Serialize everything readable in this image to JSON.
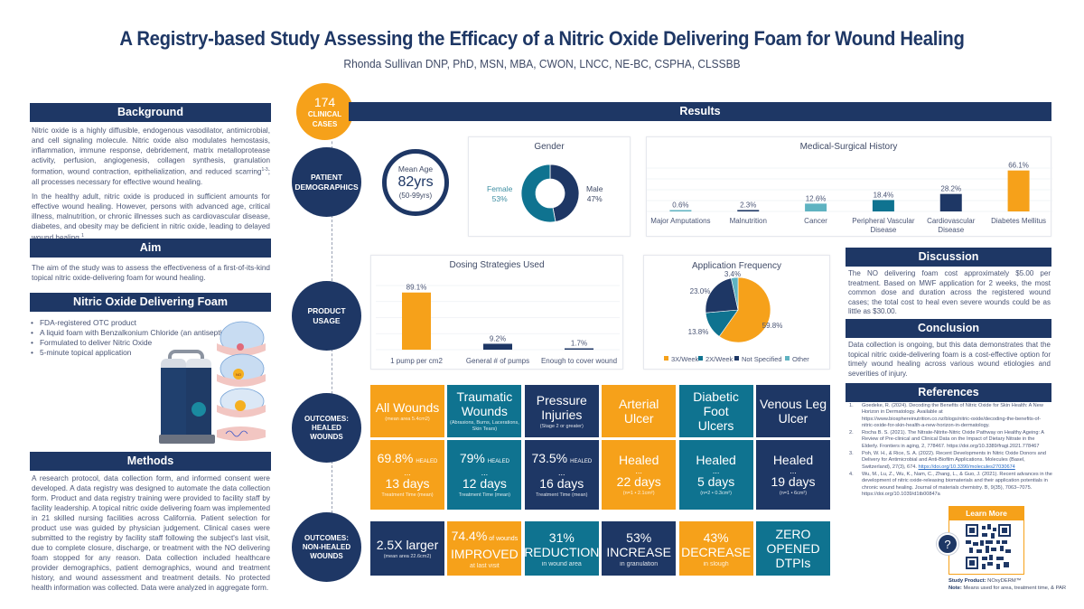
{
  "header": {
    "title": "A Registry-based Study Assessing the Efficacy of a Nitric Oxide Delivering Foam for Wound Healing",
    "authors": "Rhonda Sullivan DNP, PhD, MSN, MBA, CWON, LNCC, NE-BC, CSPHA, CLSSBB"
  },
  "colors": {
    "navy": "#1e3765",
    "orange": "#f6a11a",
    "teal": "#0f7390",
    "light_teal": "#5fb3c1"
  },
  "background": {
    "heading": "Background",
    "p1": "Nitric oxide is a highly diffusible, endogenous vasodilator, antimicrobial, and cell signaling molecule. Nitric oxide also modulates hemostasis, inflammation, immune response, debridement, matrix metalloprotease activity, perfusion, angiogenesis, collagen synthesis, granulation formation, wound contraction, epithelialization, and reduced scarring",
    "p1_sup": "1-3",
    "p1_end": "; all processes necessary for effective wound healing.",
    "p2": "In the healthy adult, nitric oxide is produced in sufficient amounts for effective wound healing. However, persons with advanced age, critical illness, malnutrition, or chronic illnesses such as cardiovascular disease, diabetes, and obesity may be deficient in nitric oxide, leading to delayed wound healing.",
    "p2_sup": "1"
  },
  "aim": {
    "heading": "Aim",
    "text": "The aim of the study was to assess the effectiveness of a first-of-its-kind topical nitric oxide-delivering foam for wound healing."
  },
  "foam": {
    "heading": "Nitric Oxide Delivering Foam",
    "bullets": [
      "FDA-registered OTC product",
      "A liquid foam with Benzalkonium Chloride (an antiseptic)",
      "Formulated to deliver Nitric Oxide",
      "5-minute topical application"
    ],
    "diagram_label": "NO"
  },
  "methods": {
    "heading": "Methods",
    "text": "A research protocol, data collection form, and informed consent were developed. A data registry was designed to automate the data collection form. Product and data registry training were provided to facility staff by facility leadership. A topical nitric oxide delivering foam was implemented in 21 skilled nursing facilities across California. Patient selection for product use was guided by physician judgement. Clinical cases were submitted to the registry by facility staff following the subject's last visit, due to complete closure, discharge, or treatment with the NO delivering foam stopped for any reason. Data collection included healthcare provider demographics, patient demographics, wound and treatment history, and wound assessment and treatment details. No protected health information was collected. Data were analyzed in aggregate form."
  },
  "cases": {
    "count": "174",
    "label1": "CLINICAL",
    "label2": "CASES"
  },
  "results": {
    "heading": "Results"
  },
  "timeline": {
    "demographics": [
      "PATIENT",
      "DEMOGRAPHICS"
    ],
    "usage": [
      "PRODUCT",
      "USAGE"
    ],
    "healed": [
      "OUTCOMES:",
      "HEALED",
      "WOUNDS"
    ],
    "nonhealed": [
      "OUTCOMES:",
      "NON-HEALED",
      "WOUNDS"
    ]
  },
  "age": {
    "label": "Mean Age",
    "value": "82yrs",
    "range": "(50-99yrs)"
  },
  "chart_data": [
    {
      "type": "pie",
      "title": "Gender",
      "donut": true,
      "categories": [
        "Male",
        "Female"
      ],
      "values": [
        47,
        53
      ],
      "labels": [
        "47%",
        "53%"
      ],
      "colors": [
        "#1e3765",
        "#0f7390"
      ]
    },
    {
      "type": "bar",
      "title": "Medical-Surgical History",
      "categories": [
        "Major Amputations",
        "Malnutrition",
        "Cancer",
        "Peripheral Vascular Disease",
        "Cardiovascular Disease",
        "Diabetes Mellitus"
      ],
      "category_lines": [
        [
          "Major Amputations"
        ],
        [
          "Malnutrition"
        ],
        [
          "Cancer"
        ],
        [
          "Peripheral Vascular",
          "Disease"
        ],
        [
          "Cardiovascular",
          "Disease"
        ],
        [
          "Diabetes Mellitus"
        ]
      ],
      "values": [
        0.6,
        2.3,
        12.6,
        18.4,
        28.2,
        66.1
      ],
      "labels": [
        "0.6%",
        "2.3%",
        "12.6%",
        "18.4%",
        "28.2%",
        "66.1%"
      ],
      "colors": [
        "#5fb3c1",
        "#1e3765",
        "#5fb3c1",
        "#0f7390",
        "#1e3765",
        "#f6a11a"
      ],
      "ylim": [
        0,
        70
      ],
      "grid": true
    },
    {
      "type": "bar",
      "title": "Dosing Strategies Used",
      "categories": [
        "1 pump per cm2",
        "General # of pumps",
        "Enough to cover wound"
      ],
      "values": [
        89.1,
        9.2,
        1.7
      ],
      "labels": [
        "89.1%",
        "9.2%",
        "1.7%"
      ],
      "colors": [
        "#f6a11a",
        "#1e3765",
        "#1e3765"
      ],
      "ylim": [
        0,
        100
      ],
      "grid": true
    },
    {
      "type": "pie",
      "title": "Application Frequency",
      "categories": [
        "3X/Week",
        "2X/Week",
        "Not Specified",
        "Other"
      ],
      "values": [
        59.8,
        13.8,
        23.0,
        3.4
      ],
      "labels": [
        "59.8%",
        "13.8%",
        "23.0%",
        "3.4%"
      ],
      "colors": [
        "#f6a11a",
        "#0f7390",
        "#1e3765",
        "#5fb3c1"
      ],
      "legend": "bottom"
    }
  ],
  "healed": {
    "headers": [
      {
        "title": "All Wounds",
        "sub": "(mean area 5.4cm2)",
        "color": "orange"
      },
      {
        "title": "Traumatic Wounds",
        "title_lines": [
          "Traumatic",
          "Wounds"
        ],
        "sub": "(Abrasions, Burns, Lacerations, Skin Tears)",
        "color": "teal"
      },
      {
        "title": "Pressure Injuries",
        "title_lines": [
          "Pressure",
          "Injuries"
        ],
        "sub": "(Stage 2 or greater)",
        "color": "navy"
      },
      {
        "title": "Arterial Ulcer",
        "title_lines": [
          "Arterial",
          "Ulcer"
        ],
        "sub": "",
        "color": "orange"
      },
      {
        "title": "Diabetic Foot Ulcers",
        "title_lines": [
          "Diabetic Foot",
          "Ulcers"
        ],
        "sub": "",
        "color": "teal"
      },
      {
        "title": "Venous Leg Ulcer",
        "title_lines": [
          "Venous Leg",
          "Ulcer"
        ],
        "sub": "",
        "color": "navy"
      }
    ],
    "values": [
      {
        "top": "69.8%",
        "top_tag": "HEALED",
        "days": "13 days",
        "note": "Treatment Time (mean)"
      },
      {
        "top": "79%",
        "top_tag": "HEALED",
        "days": "12 days",
        "note": "Treatment Time (mean)"
      },
      {
        "top": "73.5%",
        "top_tag": "HEALED",
        "days": "16 days",
        "note": "Treatment Time (mean)"
      },
      {
        "top": "Healed",
        "top_tag": "",
        "days": "22 days",
        "note": "(n=1 • 2.1cm²)"
      },
      {
        "top": "Healed",
        "top_tag": "",
        "days": "5 days",
        "note": "(n=2 • 0.3cm²)"
      },
      {
        "top": "Healed",
        "top_tag": "",
        "days": "19 days",
        "note": "(n=1 • 6cm²)"
      }
    ],
    "dots": "..."
  },
  "nonhealed": [
    {
      "l1": "2.5X larger",
      "l2": "",
      "l3": "(mean area 22.6cm2)",
      "color": "navy"
    },
    {
      "l1": "74.4%",
      "l1_tag": "of wounds",
      "l2": "IMPROVED",
      "l3": "at last visit",
      "color": "orange"
    },
    {
      "l1": "31%",
      "l2": "REDUCTION",
      "l3": "in wound area",
      "color": "teal"
    },
    {
      "l1": "53%",
      "l2": "INCREASE",
      "l3": "in granulation",
      "color": "navy"
    },
    {
      "l1": "43%",
      "l2": "DECREASE",
      "l3": "in slough",
      "color": "orange"
    },
    {
      "l1": "ZERO",
      "l2": "OPENED",
      "l3": "DTPIs",
      "color": "teal"
    }
  ],
  "discussion": {
    "heading": "Discussion",
    "text": "The NO delivering foam cost approximately $5.00 per treatment. Based on MWF application for 2 weeks, the most common dose and duration across the registered wound cases; the total cost to heal even severe wounds could be as little as $30.00."
  },
  "conclusion": {
    "heading": "Conclusion",
    "text": "Data collection is ongoing, but this data demonstrates that the topical nitric oxide-delivering foam is a cost-effective option for timely wound healing across various wound etiologies and severities of injury."
  },
  "references": {
    "heading": "References",
    "items": [
      {
        "n": "1.",
        "text": "Goedeke, R. (2024). Decoding the Benefits of Nitric Oxide for Skin Health: A New Horizon in Dermatology. Available at https://www.biosphereinutrition.co.nz/blogs/nitric-oxide/decoding-the-benefits-of-nitric-oxide-for-skin-health-a-new-horizon-in-dermatology.",
        "link": ""
      },
      {
        "n": "2.",
        "text": "Rocha B. S. (2021). The Nitrate-Nitrite-Nitric Oxide Pathway on Healthy Ageing: A Review of Pre-clinical and Clinical Data on the Impact of Dietary Nitrate in the Elderly. Frontiers in aging, 2, 778467. https://doi.org/10.3389/fragi.2021.778467",
        "link": ""
      },
      {
        "n": "3.",
        "text": "Poh, W. H., & Rice, S. A. (2022). Recent Developments in Nitric Oxide Donors and Delivery for Antimicrobial and Anti-Biofilm Applications. Molecules (Basel, Switzerland), 27(3), 674. ",
        "link": "https://doi.org/10.3390/molecules27030674"
      },
      {
        "n": "4.",
        "text": "Wu, M., Lu, Z., Wu, K., Nam, C., Zhang, L., & Guo, J. (2021). Recent advances in the development of nitric oxide-releasing biomaterials and their application potentials in chronic wound healing. Journal of materials chemistry. B, 9(35), 7063–7075. https://doi.org/10.1039/d1tb00847a",
        "link": ""
      }
    ]
  },
  "learn_more": {
    "label": "Learn More",
    "help_icon": "?"
  },
  "footer": {
    "product_label": "Study Product:",
    "product_value": "NOxyDERM™",
    "note_label": "Note:",
    "note_value": "Means used for area, treatment time, & PAR"
  }
}
